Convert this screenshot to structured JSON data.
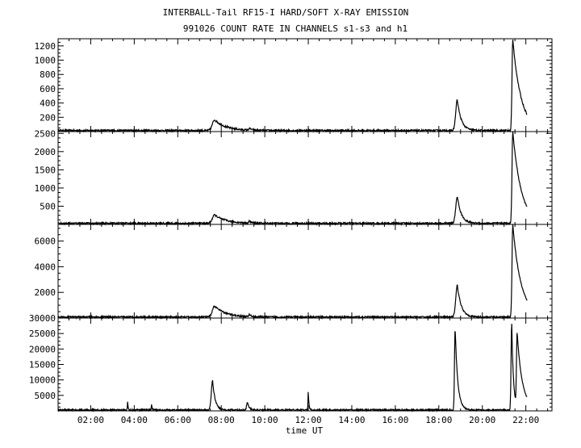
{
  "chart_data": {
    "type": "line",
    "title": "INTERBALL-Tail RF15-I HARD/SOFT X-RAY EMISSION",
    "subtitle": "991026  COUNT RATE IN CHANNELS s1-s3 and h1",
    "xlabel": "time UT",
    "xlim": [
      0.5,
      23.2
    ],
    "x_ticks": [
      "02:00",
      "04:00",
      "06:00",
      "08:00",
      "10:00",
      "12:00",
      "14:00",
      "16:00",
      "18:00",
      "20:00",
      "22:00"
    ],
    "x_tick_hours": [
      2,
      4,
      6,
      8,
      10,
      12,
      14,
      16,
      18,
      20,
      22
    ],
    "line_color": "#000000",
    "panels": [
      {
        "ylim": [
          0,
          1300
        ],
        "y_ticks": [
          "200",
          "400",
          "600",
          "800",
          "1000",
          "1200"
        ],
        "y_tick_values": [
          200,
          400,
          600,
          800,
          1000,
          1200
        ],
        "baseline": 15,
        "events": [
          {
            "t": 7.7,
            "peak": 150,
            "rise": 0.15,
            "decay": 0.5
          },
          {
            "t": 9.3,
            "peak": 25,
            "rise": 0.05,
            "decay": 0.1
          },
          {
            "t": 18.85,
            "peak": 430,
            "rise": 0.1,
            "decay": 0.18
          },
          {
            "t": 21.4,
            "peak": 1270,
            "rise": 0.05,
            "decay": 0.38
          }
        ]
      },
      {
        "ylim": [
          0,
          2550
        ],
        "y_ticks": [
          "500",
          "1000",
          "1500",
          "2000",
          "2500"
        ],
        "y_tick_values": [
          500,
          1000,
          1500,
          2000,
          2500
        ],
        "baseline": 30,
        "events": [
          {
            "t": 7.7,
            "peak": 230,
            "rise": 0.15,
            "decay": 0.5
          },
          {
            "t": 9.3,
            "peak": 50,
            "rise": 0.05,
            "decay": 0.1
          },
          {
            "t": 18.85,
            "peak": 740,
            "rise": 0.1,
            "decay": 0.18
          },
          {
            "t": 21.4,
            "peak": 2530,
            "rise": 0.05,
            "decay": 0.38
          }
        ]
      },
      {
        "ylim": [
          0,
          7300
        ],
        "y_ticks": [
          "2000",
          "4000",
          "6000"
        ],
        "y_tick_values": [
          2000,
          4000,
          6000
        ],
        "baseline": 80,
        "events": [
          {
            "t": 7.7,
            "peak": 850,
            "rise": 0.15,
            "decay": 0.5
          },
          {
            "t": 9.3,
            "peak": 150,
            "rise": 0.05,
            "decay": 0.1
          },
          {
            "t": 18.85,
            "peak": 2500,
            "rise": 0.1,
            "decay": 0.18
          },
          {
            "t": 21.4,
            "peak": 7200,
            "rise": 0.05,
            "decay": 0.38
          }
        ]
      },
      {
        "ylim": [
          0,
          30000
        ],
        "y_ticks": [
          "5000",
          "10000",
          "15000",
          "20000",
          "25000",
          "30000"
        ],
        "y_tick_values": [
          5000,
          10000,
          15000,
          20000,
          25000,
          30000
        ],
        "baseline": 300,
        "events": [
          {
            "t": 3.7,
            "peak": 2800,
            "rise": 0.02,
            "decay": 0.02
          },
          {
            "t": 4.8,
            "peak": 1800,
            "rise": 0.02,
            "decay": 0.02
          },
          {
            "t": 7.6,
            "peak": 9500,
            "rise": 0.08,
            "decay": 0.12
          },
          {
            "t": 9.2,
            "peak": 2500,
            "rise": 0.05,
            "decay": 0.08
          },
          {
            "t": 12.0,
            "peak": 5800,
            "rise": 0.02,
            "decay": 0.03
          },
          {
            "t": 18.75,
            "peak": 26500,
            "rise": 0.04,
            "decay": 0.12
          },
          {
            "t": 21.35,
            "peak": 28500,
            "rise": 0.04,
            "decay": 0.08
          },
          {
            "t": 21.6,
            "peak": 24000,
            "rise": 0.04,
            "decay": 0.25
          }
        ]
      }
    ]
  }
}
